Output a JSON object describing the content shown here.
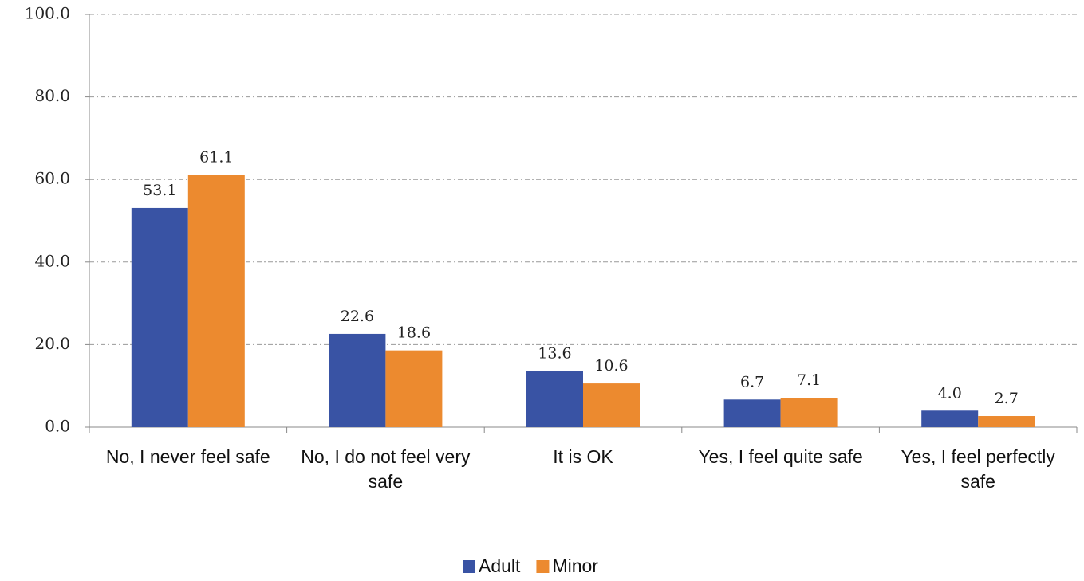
{
  "chart_data": {
    "type": "bar",
    "categories": [
      "No, I never feel safe",
      "No, I do not feel very safe",
      "It is OK",
      "Yes, I feel quite safe",
      "Yes, I feel perfectly safe"
    ],
    "series": [
      {
        "name": "Adult",
        "color": "#3953a4",
        "values": [
          53.1,
          22.6,
          13.6,
          6.7,
          4.0
        ],
        "value_labels": [
          "53.1",
          "22.6",
          "13.6",
          "6.7",
          "4.0"
        ]
      },
      {
        "name": "Minor",
        "color": "#ec8a2f",
        "values": [
          61.1,
          18.6,
          10.6,
          7.1,
          2.7
        ],
        "value_labels": [
          "61.1",
          "18.6",
          "10.6",
          "7.1",
          "2.7"
        ]
      }
    ],
    "ylim": [
      0,
      100
    ],
    "yticks": [
      {
        "value": 0,
        "label": "0.0"
      },
      {
        "value": 20,
        "label": "20.0"
      },
      {
        "value": 40,
        "label": "40.0"
      },
      {
        "value": 60,
        "label": "60.0"
      },
      {
        "value": 80,
        "label": "80.0"
      },
      {
        "value": 100,
        "label": "100.0"
      }
    ],
    "grid": true,
    "legend": "bottom"
  }
}
